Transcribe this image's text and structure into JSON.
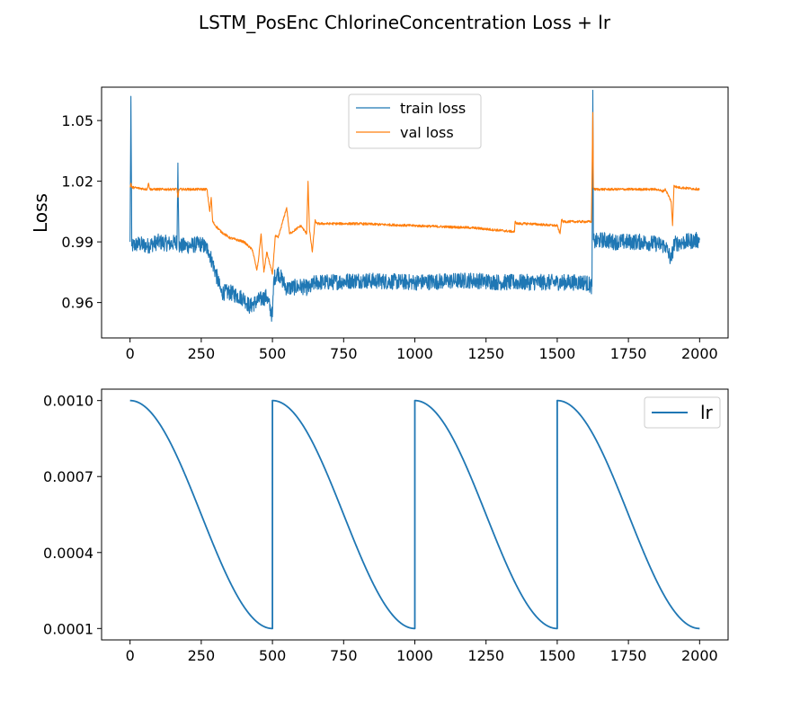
{
  "chart_data": [
    {
      "type": "line",
      "title": "LSTM_PosEnc ChlorineConcentration Loss + lr",
      "ylabel": "Loss",
      "xlabel": "",
      "xlim": [
        -100,
        2100
      ],
      "ylim": [
        0.9425,
        1.0665
      ],
      "xticks": [
        0,
        250,
        500,
        750,
        1000,
        1250,
        1500,
        1750,
        2000
      ],
      "xtick_labels": [
        "0",
        "250",
        "500",
        "750",
        "1000",
        "1250",
        "1500",
        "1750",
        "2000"
      ],
      "yticks": [
        0.96,
        0.99,
        1.02,
        1.05
      ],
      "ytick_labels": [
        "0.96",
        "0.99",
        "1.02",
        "1.05"
      ],
      "legend": "top-center",
      "series": [
        {
          "name": "train loss",
          "color": "#1f77b4",
          "noise": 0.004,
          "x": [
            0,
            3,
            6,
            30,
            60,
            100,
            140,
            165,
            168,
            172,
            200,
            250,
            275,
            300,
            320,
            350,
            400,
            420,
            450,
            480,
            500,
            505,
            520,
            550,
            600,
            630,
            650,
            700,
            800,
            1000,
            1200,
            1300,
            1400,
            1500,
            1600,
            1622,
            1625,
            1627,
            1630,
            1660,
            1700,
            1750,
            1800,
            1850,
            1880,
            1900,
            1910,
            1950,
            2000
          ],
          "y": [
            0.99,
            1.062,
            0.988,
            0.989,
            0.988,
            0.99,
            0.989,
            0.99,
            1.029,
            0.988,
            0.988,
            0.989,
            0.986,
            0.975,
            0.965,
            0.965,
            0.962,
            0.958,
            0.961,
            0.963,
            0.953,
            0.972,
            0.975,
            0.967,
            0.968,
            0.967,
            0.97,
            0.97,
            0.971,
            0.97,
            0.971,
            0.97,
            0.97,
            0.97,
            0.97,
            0.968,
            1.065,
            0.991,
            0.99,
            0.991,
            0.99,
            0.99,
            0.99,
            0.989,
            0.988,
            0.981,
            0.989,
            0.99,
            0.991
          ]
        },
        {
          "name": "val loss",
          "color": "#ff7f0e",
          "noise": 0.0006,
          "x": [
            0,
            3,
            6,
            60,
            65,
            70,
            100,
            165,
            168,
            172,
            270,
            280,
            285,
            290,
            300,
            320,
            350,
            400,
            430,
            445,
            450,
            460,
            470,
            480,
            500,
            510,
            520,
            550,
            560,
            600,
            620,
            625,
            630,
            640,
            650,
            655,
            700,
            800,
            1000,
            1200,
            1350,
            1352,
            1360,
            1400,
            1500,
            1510,
            1515,
            1520,
            1600,
            1620,
            1625,
            1627,
            1630,
            1700,
            1850,
            1870,
            1880,
            1900,
            1905,
            1910,
            1920,
            2000
          ],
          "y": [
            1.017,
            1.019,
            1.017,
            1.016,
            1.019,
            1.016,
            1.016,
            1.016,
            1.012,
            1.016,
            1.016,
            1.005,
            1.012,
            1.0,
            0.998,
            0.995,
            0.992,
            0.99,
            0.986,
            0.976,
            0.98,
            0.994,
            0.975,
            0.985,
            0.974,
            0.993,
            0.992,
            1.007,
            0.994,
            0.998,
            0.994,
            1.02,
            0.996,
            0.985,
            1.001,
            0.999,
            0.999,
            0.999,
            0.998,
            0.997,
            0.995,
            1.0,
            0.999,
            0.999,
            0.998,
            0.994,
            1.001,
            1.0,
            1.0,
            1.0,
            1.054,
            1.017,
            1.016,
            1.016,
            1.016,
            1.015,
            1.016,
            1.01,
            0.998,
            1.018,
            1.017,
            1.016
          ]
        }
      ]
    },
    {
      "type": "line",
      "title": "",
      "ylabel": "",
      "xlabel": "",
      "xlim": [
        -100,
        2100
      ],
      "ylim": [
        5.5e-05,
        0.001045
      ],
      "xticks": [
        0,
        250,
        500,
        750,
        1000,
        1250,
        1500,
        1750,
        2000
      ],
      "xtick_labels": [
        "0",
        "250",
        "500",
        "750",
        "1000",
        "1250",
        "1500",
        "1750",
        "2000"
      ],
      "yticks": [
        0.0001,
        0.0004,
        0.0007,
        0.001
      ],
      "ytick_labels": [
        "0.0001",
        "0.0004",
        "0.0007",
        "0.0010"
      ],
      "legend": "top-right",
      "schedule": {
        "kind": "cosine_restart",
        "max": 0.001,
        "min": 0.0001,
        "period": 500,
        "x_end": 2000
      },
      "series": [
        {
          "name": "lr",
          "color": "#1f77b4"
        }
      ]
    }
  ]
}
